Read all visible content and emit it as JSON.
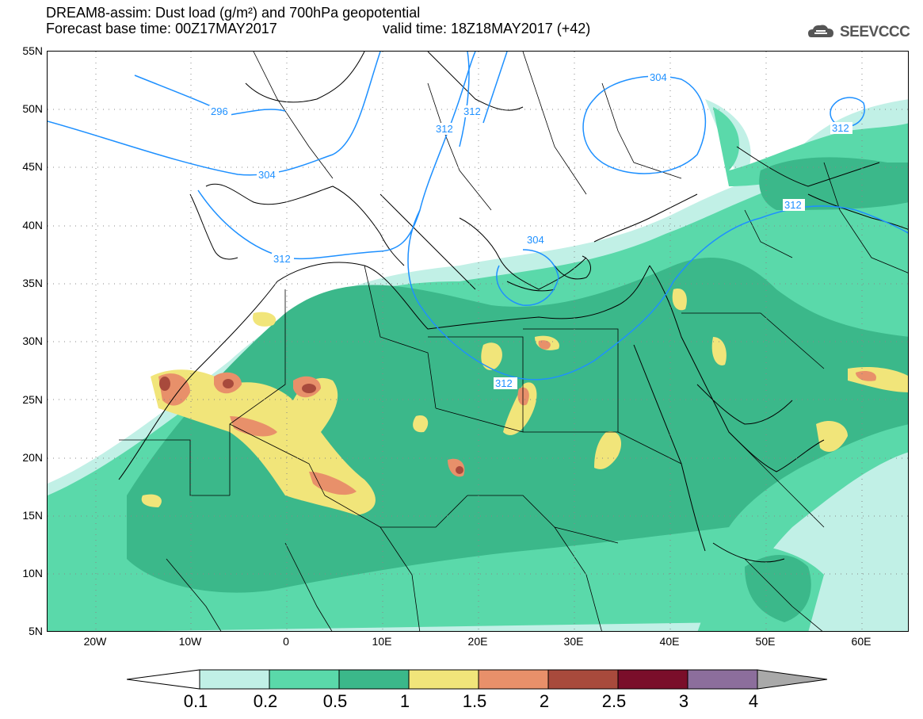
{
  "header": {
    "line1": "DREAM8-assim: Dust load (g/m²) and 700hPa geopotential",
    "line2_left": "Forecast base time: 00Z17MAY2017",
    "line2_right": "valid time: 18Z18MAY2017 (+42)"
  },
  "logo": {
    "text": "SEEVCCC",
    "icon": "cloud-logo-icon"
  },
  "axes": {
    "lat_labels": [
      "55N",
      "50N",
      "45N",
      "40N",
      "35N",
      "30N",
      "25N",
      "20N",
      "15N",
      "10N",
      "5N"
    ],
    "lon_labels": [
      "20W",
      "10W",
      "0",
      "10E",
      "20E",
      "30E",
      "40E",
      "50E",
      "60E"
    ],
    "lat_range": [
      5,
      55
    ],
    "lon_range": [
      -25,
      65
    ]
  },
  "colorbar": {
    "levels": [
      "0.1",
      "0.2",
      "0.5",
      "1",
      "1.5",
      "2",
      "2.5",
      "3",
      "4"
    ],
    "colors": [
      "#c1f0e6",
      "#5ad9aa",
      "#3bb88a",
      "#f1e57a",
      "#e8906a",
      "#a84a3c",
      "#7a0e2a",
      "#8c6e9c",
      "#a9a9a9"
    ]
  },
  "contours": {
    "labels": [
      "296",
      "304",
      "312",
      "312",
      "312",
      "304",
      "312",
      "312",
      "304",
      "312"
    ],
    "color": "#1e90ff"
  }
}
